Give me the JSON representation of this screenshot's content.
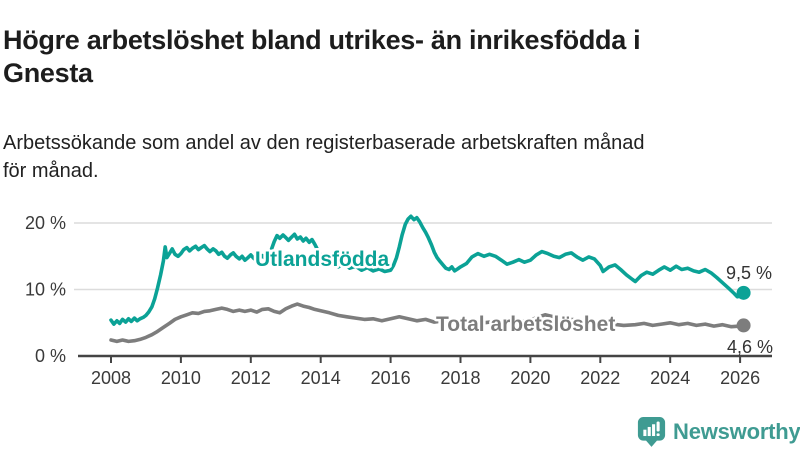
{
  "header": {
    "title": "Högre arbetslöshet bland utrikes- än inrikesfödda i\nGnesta",
    "subtitle": "Arbetssökande som andel av den registerbaserade arbetskraften månad\nför månad."
  },
  "branding": {
    "logo_text": "Newsworthy",
    "logo_color": "#3f9b92"
  },
  "colors": {
    "foreign_born_line": "#0ba296",
    "total_line": "#7d7d7d",
    "gridline": "#dcdcdc",
    "axis": "#444444",
    "text": "#1d1d1d"
  },
  "chart_data": {
    "type": "line",
    "title": "Högre arbetslöshet bland utrikes- än inrikesfödda i Gnesta",
    "subtitle": "Arbetssökande som andel av den registerbaserade arbetskraften månad för månad.",
    "unit": "%",
    "grid": "horizontal",
    "xlim": [
      2007.7,
      2026.6
    ],
    "ylim": [
      0,
      22
    ],
    "x_ticks": [
      {
        "value": 2008,
        "label": "2008"
      },
      {
        "value": 2010,
        "label": "2010"
      },
      {
        "value": 2012,
        "label": "2012"
      },
      {
        "value": 2014,
        "label": "2014"
      },
      {
        "value": 2016,
        "label": "2016"
      },
      {
        "value": 2018,
        "label": "2018"
      },
      {
        "value": 2020,
        "label": "2020"
      },
      {
        "value": 2022,
        "label": "2022"
      },
      {
        "value": 2024,
        "label": "2024"
      },
      {
        "value": 2026,
        "label": "2026"
      }
    ],
    "y_ticks": [
      {
        "value": 0,
        "label": "0 %"
      },
      {
        "value": 10,
        "label": "10 %"
      },
      {
        "value": 20,
        "label": "20 %"
      }
    ],
    "series": [
      {
        "name": "Utlandsfödda",
        "color": "#0ba296",
        "end_label": "9,5 %",
        "end_value": 9.5,
        "points": [
          [
            2008.0,
            5.4
          ],
          [
            2008.08,
            4.8
          ],
          [
            2008.17,
            5.3
          ],
          [
            2008.25,
            4.9
          ],
          [
            2008.33,
            5.5
          ],
          [
            2008.42,
            5.1
          ],
          [
            2008.5,
            5.6
          ],
          [
            2008.58,
            5.2
          ],
          [
            2008.67,
            5.7
          ],
          [
            2008.75,
            5.3
          ],
          [
            2008.83,
            5.6
          ],
          [
            2008.92,
            5.8
          ],
          [
            2009.0,
            6.1
          ],
          [
            2009.08,
            6.6
          ],
          [
            2009.17,
            7.4
          ],
          [
            2009.25,
            8.6
          ],
          [
            2009.33,
            10.2
          ],
          [
            2009.42,
            12.2
          ],
          [
            2009.5,
            14.3
          ],
          [
            2009.55,
            16.4
          ],
          [
            2009.6,
            14.8
          ],
          [
            2009.67,
            15.4
          ],
          [
            2009.75,
            16.1
          ],
          [
            2009.83,
            15.3
          ],
          [
            2009.92,
            15.0
          ],
          [
            2010.0,
            15.4
          ],
          [
            2010.08,
            16.0
          ],
          [
            2010.17,
            16.3
          ],
          [
            2010.25,
            15.8
          ],
          [
            2010.33,
            16.2
          ],
          [
            2010.42,
            16.5
          ],
          [
            2010.5,
            16.0
          ],
          [
            2010.58,
            16.3
          ],
          [
            2010.67,
            16.6
          ],
          [
            2010.75,
            16.1
          ],
          [
            2010.83,
            15.7
          ],
          [
            2010.92,
            16.1
          ],
          [
            2011.0,
            15.8
          ],
          [
            2011.08,
            15.3
          ],
          [
            2011.17,
            15.6
          ],
          [
            2011.25,
            15.0
          ],
          [
            2011.33,
            14.7
          ],
          [
            2011.42,
            15.2
          ],
          [
            2011.5,
            15.5
          ],
          [
            2011.58,
            15.0
          ],
          [
            2011.67,
            14.6
          ],
          [
            2011.75,
            15.0
          ],
          [
            2011.83,
            14.4
          ],
          [
            2011.92,
            14.8
          ],
          [
            2012.0,
            15.2
          ],
          [
            2012.08,
            14.7
          ],
          [
            2012.17,
            14.3
          ],
          [
            2012.25,
            14.8
          ],
          [
            2012.33,
            15.1
          ],
          [
            2012.42,
            14.6
          ],
          [
            2012.5,
            15.0
          ],
          [
            2012.58,
            15.9
          ],
          [
            2012.67,
            17.2
          ],
          [
            2012.75,
            18.1
          ],
          [
            2012.83,
            17.7
          ],
          [
            2012.92,
            18.2
          ],
          [
            2013.0,
            17.8
          ],
          [
            2013.08,
            17.4
          ],
          [
            2013.17,
            17.9
          ],
          [
            2013.25,
            18.3
          ],
          [
            2013.33,
            17.6
          ],
          [
            2013.42,
            17.9
          ],
          [
            2013.5,
            17.3
          ],
          [
            2013.58,
            17.7
          ],
          [
            2013.67,
            17.1
          ],
          [
            2013.75,
            17.5
          ],
          [
            2013.83,
            16.8
          ],
          [
            2013.92,
            15.9
          ],
          [
            2014.0,
            15.1
          ],
          [
            2014.17,
            14.3
          ],
          [
            2014.33,
            13.7
          ],
          [
            2014.5,
            13.4
          ],
          [
            2014.67,
            13.9
          ],
          [
            2014.83,
            13.2
          ],
          [
            2015.0,
            13.5
          ],
          [
            2015.17,
            12.9
          ],
          [
            2015.33,
            13.3
          ],
          [
            2015.5,
            12.8
          ],
          [
            2015.67,
            13.1
          ],
          [
            2015.83,
            12.7
          ],
          [
            2016.0,
            12.9
          ],
          [
            2016.08,
            13.6
          ],
          [
            2016.17,
            14.8
          ],
          [
            2016.25,
            16.4
          ],
          [
            2016.33,
            18.2
          ],
          [
            2016.42,
            19.8
          ],
          [
            2016.5,
            20.6
          ],
          [
            2016.58,
            21.0
          ],
          [
            2016.67,
            20.5
          ],
          [
            2016.75,
            20.8
          ],
          [
            2016.83,
            20.2
          ],
          [
            2016.92,
            19.3
          ],
          [
            2017.0,
            18.6
          ],
          [
            2017.08,
            17.8
          ],
          [
            2017.17,
            16.7
          ],
          [
            2017.25,
            15.6
          ],
          [
            2017.33,
            14.8
          ],
          [
            2017.42,
            14.2
          ],
          [
            2017.5,
            13.7
          ],
          [
            2017.58,
            13.2
          ],
          [
            2017.67,
            13.0
          ],
          [
            2017.75,
            13.4
          ],
          [
            2017.83,
            12.8
          ],
          [
            2017.92,
            13.1
          ],
          [
            2018.0,
            13.4
          ],
          [
            2018.17,
            13.9
          ],
          [
            2018.33,
            14.9
          ],
          [
            2018.5,
            15.4
          ],
          [
            2018.67,
            15.0
          ],
          [
            2018.83,
            15.3
          ],
          [
            2019.0,
            15.0
          ],
          [
            2019.17,
            14.4
          ],
          [
            2019.33,
            13.8
          ],
          [
            2019.5,
            14.1
          ],
          [
            2019.67,
            14.5
          ],
          [
            2019.83,
            14.1
          ],
          [
            2020.0,
            14.4
          ],
          [
            2020.17,
            15.2
          ],
          [
            2020.33,
            15.7
          ],
          [
            2020.5,
            15.4
          ],
          [
            2020.67,
            15.0
          ],
          [
            2020.83,
            14.8
          ],
          [
            2021.0,
            15.3
          ],
          [
            2021.17,
            15.5
          ],
          [
            2021.33,
            14.9
          ],
          [
            2021.5,
            14.4
          ],
          [
            2021.67,
            14.9
          ],
          [
            2021.83,
            14.6
          ],
          [
            2022.0,
            13.6
          ],
          [
            2022.08,
            12.7
          ],
          [
            2022.25,
            13.4
          ],
          [
            2022.42,
            13.7
          ],
          [
            2022.58,
            13.0
          ],
          [
            2022.75,
            12.2
          ],
          [
            2022.92,
            11.5
          ],
          [
            2023.0,
            11.2
          ],
          [
            2023.17,
            12.1
          ],
          [
            2023.33,
            12.6
          ],
          [
            2023.5,
            12.3
          ],
          [
            2023.67,
            12.9
          ],
          [
            2023.83,
            13.4
          ],
          [
            2024.0,
            12.9
          ],
          [
            2024.17,
            13.5
          ],
          [
            2024.33,
            13.0
          ],
          [
            2024.5,
            13.2
          ],
          [
            2024.67,
            12.8
          ],
          [
            2024.83,
            12.6
          ],
          [
            2025.0,
            13.0
          ],
          [
            2025.17,
            12.5
          ],
          [
            2025.33,
            11.8
          ],
          [
            2025.5,
            11.0
          ],
          [
            2025.67,
            10.2
          ],
          [
            2025.83,
            9.4
          ],
          [
            2025.92,
            8.9
          ],
          [
            2026.0,
            9.0
          ],
          [
            2026.1,
            9.5
          ]
        ]
      },
      {
        "name": "Total arbetslöshet",
        "color": "#7d7d7d",
        "end_label": "4,6 %",
        "end_value": 4.6,
        "points": [
          [
            2008.0,
            2.4
          ],
          [
            2008.17,
            2.2
          ],
          [
            2008.33,
            2.4
          ],
          [
            2008.5,
            2.2
          ],
          [
            2008.67,
            2.3
          ],
          [
            2008.83,
            2.5
          ],
          [
            2009.0,
            2.8
          ],
          [
            2009.17,
            3.2
          ],
          [
            2009.33,
            3.7
          ],
          [
            2009.5,
            4.3
          ],
          [
            2009.67,
            4.9
          ],
          [
            2009.83,
            5.5
          ],
          [
            2010.0,
            5.9
          ],
          [
            2010.17,
            6.2
          ],
          [
            2010.33,
            6.5
          ],
          [
            2010.5,
            6.4
          ],
          [
            2010.67,
            6.7
          ],
          [
            2010.83,
            6.8
          ],
          [
            2011.0,
            7.0
          ],
          [
            2011.17,
            7.2
          ],
          [
            2011.33,
            7.0
          ],
          [
            2011.5,
            6.7
          ],
          [
            2011.67,
            6.9
          ],
          [
            2011.83,
            6.7
          ],
          [
            2012.0,
            6.9
          ],
          [
            2012.17,
            6.6
          ],
          [
            2012.33,
            7.0
          ],
          [
            2012.5,
            7.1
          ],
          [
            2012.67,
            6.7
          ],
          [
            2012.83,
            6.5
          ],
          [
            2013.0,
            7.1
          ],
          [
            2013.17,
            7.5
          ],
          [
            2013.33,
            7.8
          ],
          [
            2013.5,
            7.5
          ],
          [
            2013.67,
            7.3
          ],
          [
            2013.83,
            7.0
          ],
          [
            2014.0,
            6.8
          ],
          [
            2014.25,
            6.5
          ],
          [
            2014.5,
            6.1
          ],
          [
            2014.75,
            5.9
          ],
          [
            2015.0,
            5.7
          ],
          [
            2015.25,
            5.5
          ],
          [
            2015.5,
            5.6
          ],
          [
            2015.75,
            5.3
          ],
          [
            2016.0,
            5.6
          ],
          [
            2016.25,
            5.9
          ],
          [
            2016.5,
            5.6
          ],
          [
            2016.75,
            5.3
          ],
          [
            2017.0,
            5.5
          ],
          [
            2017.25,
            5.1
          ],
          [
            2017.5,
            5.3
          ],
          [
            2017.75,
            5.0
          ],
          [
            2018.0,
            5.2
          ],
          [
            2018.33,
            5.3
          ],
          [
            2018.67,
            5.0
          ],
          [
            2019.0,
            5.2
          ],
          [
            2019.33,
            5.0
          ],
          [
            2019.67,
            5.2
          ],
          [
            2020.0,
            5.4
          ],
          [
            2020.25,
            5.9
          ],
          [
            2020.42,
            6.2
          ],
          [
            2020.58,
            6.0
          ],
          [
            2020.83,
            5.7
          ],
          [
            2021.0,
            5.6
          ],
          [
            2021.33,
            5.4
          ],
          [
            2021.67,
            5.2
          ],
          [
            2022.0,
            5.0
          ],
          [
            2022.33,
            4.8
          ],
          [
            2022.67,
            4.6
          ],
          [
            2023.0,
            4.7
          ],
          [
            2023.25,
            4.9
          ],
          [
            2023.5,
            4.6
          ],
          [
            2023.75,
            4.8
          ],
          [
            2024.0,
            5.0
          ],
          [
            2024.25,
            4.7
          ],
          [
            2024.5,
            4.9
          ],
          [
            2024.75,
            4.6
          ],
          [
            2025.0,
            4.8
          ],
          [
            2025.25,
            4.5
          ],
          [
            2025.5,
            4.7
          ],
          [
            2025.75,
            4.4
          ],
          [
            2026.0,
            4.5
          ],
          [
            2026.1,
            4.6
          ]
        ]
      }
    ]
  }
}
